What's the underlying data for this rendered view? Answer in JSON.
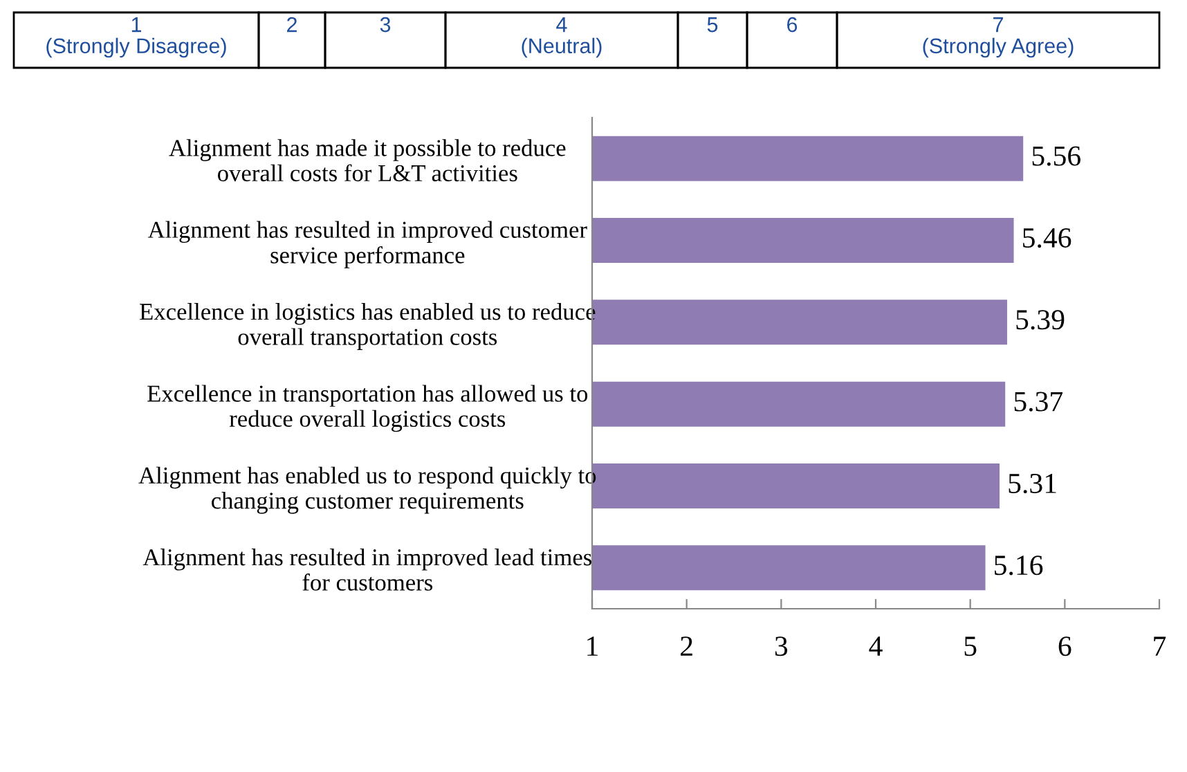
{
  "chart_data": {
    "type": "bar",
    "orientation": "horizontal",
    "categories": [
      "Alignment has made it possible to reduce\noverall costs for L&T activities",
      "Alignment has resulted in improved customer\nservice performance",
      "Excellence in logistics has enabled us to reduce\noverall transportation costs",
      "Excellence in transportation has allowed us to\nreduce overall logistics costs",
      "Alignment has enabled us to respond quickly to\nchanging customer requirements",
      "Alignment has resulted in improved lead times\nfor customers"
    ],
    "values": [
      5.56,
      5.46,
      5.39,
      5.37,
      5.31,
      5.16
    ],
    "color": "#8e7cb3",
    "data_labels": true,
    "xlim": [
      1,
      7
    ],
    "xticks": [
      1,
      2,
      3,
      4,
      5,
      6,
      7
    ],
    "grid": false,
    "legend": false,
    "annotations": [
      "1\n(Strongly Disagree)",
      "2",
      "3",
      "4\n(Neutral)",
      "5",
      "6",
      "7\n(Strongly Agree)"
    ]
  }
}
